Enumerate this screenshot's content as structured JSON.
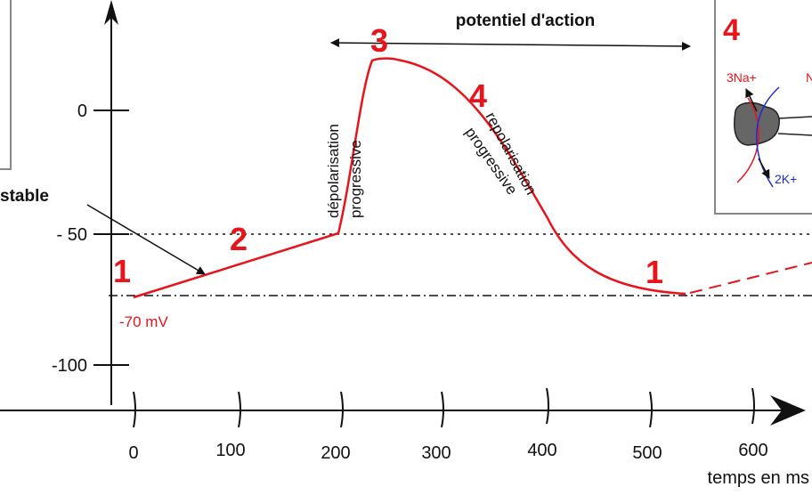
{
  "title": "potentiel d'action",
  "y_axis": {
    "ticks": [
      "0",
      "- 50",
      "-100"
    ]
  },
  "x_axis": {
    "label": "temps en ms",
    "ticks": [
      "0",
      "100",
      "200",
      "300",
      "400",
      "500",
      "600"
    ]
  },
  "phases": [
    "1",
    "2",
    "3",
    "4",
    "1"
  ],
  "annotations": {
    "threshold_left": "stable",
    "resting": "-70 mV",
    "depolarisation": [
      "dépolarisation",
      "progressive"
    ],
    "repolarisation": [
      "repolarisation",
      "progressive"
    ]
  },
  "inset": {
    "label": "4",
    "na": "3Na+",
    "na_right": "N",
    "k": "2K+"
  }
}
